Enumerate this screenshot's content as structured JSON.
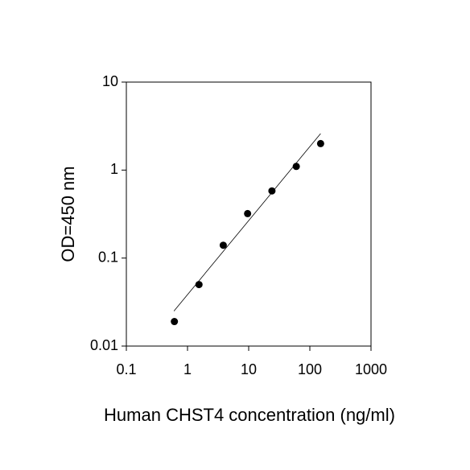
{
  "chart_data": {
    "type": "scatter",
    "x_label": "Human CHST4 concentration (ng/ml)",
    "y_label": "OD=450 nm",
    "x": [
      0.61,
      1.54,
      3.84,
      9.6,
      24,
      60,
      150
    ],
    "values": [
      0.019,
      0.05,
      0.14,
      0.32,
      0.58,
      1.1,
      2.0
    ],
    "color": "#000000",
    "fit_line": {
      "x": [
        0.6,
        150
      ],
      "values": [
        0.025,
        2.6
      ],
      "color": "#000000"
    },
    "x_log": true,
    "y_log": true,
    "xlim": [
      0.1,
      1000
    ],
    "xticks": [
      0.1,
      1,
      10,
      100,
      1000
    ],
    "ylim": [
      0.01,
      10
    ],
    "yticks": [
      0.01,
      0.1,
      1,
      10
    ]
  }
}
